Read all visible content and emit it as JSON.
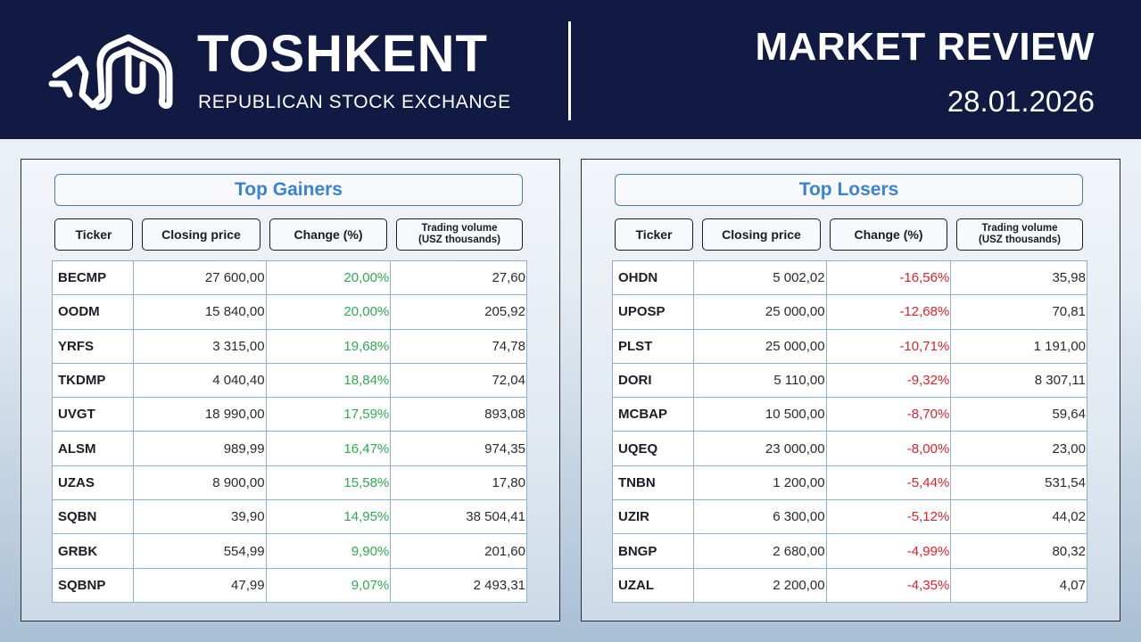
{
  "header": {
    "brand_name": "TOSHKENT",
    "brand_sub": "REPUBLICAN STOCK EXCHANGE",
    "report_title": "MARKET REVIEW",
    "report_date": "28.01.2026",
    "logo_icon": "exchange-logo-icon"
  },
  "colors": {
    "header_bg": "#101a42",
    "title_blue": "#3a83cf",
    "gain_green": "#2eaa4f",
    "loss_red": "#e0222a"
  },
  "columns": {
    "ticker": "Ticker",
    "closing_price": "Closing price",
    "change": "Change (%)",
    "volume_line1": "Trading volume",
    "volume_line2": "(USZ thousands)"
  },
  "gainers": {
    "title": "Top Gainers",
    "rows": [
      {
        "ticker": "BECMP",
        "price": "27 600,00",
        "change": "20,00%",
        "volume": "27,60"
      },
      {
        "ticker": "OODM",
        "price": "15 840,00",
        "change": "20,00%",
        "volume": "205,92"
      },
      {
        "ticker": "YRFS",
        "price": "3 315,00",
        "change": "19,68%",
        "volume": "74,78"
      },
      {
        "ticker": "TKDMP",
        "price": "4 040,40",
        "change": "18,84%",
        "volume": "72,04"
      },
      {
        "ticker": "UVGT",
        "price": "18 990,00",
        "change": "17,59%",
        "volume": "893,08"
      },
      {
        "ticker": "ALSM",
        "price": "989,99",
        "change": "16,47%",
        "volume": "974,35"
      },
      {
        "ticker": "UZAS",
        "price": "8 900,00",
        "change": "15,58%",
        "volume": "17,80"
      },
      {
        "ticker": "SQBN",
        "price": "39,90",
        "change": "14,95%",
        "volume": "38 504,41"
      },
      {
        "ticker": "GRBK",
        "price": "554,99",
        "change": "9,90%",
        "volume": "201,60"
      },
      {
        "ticker": "SQBNP",
        "price": "47,99",
        "change": "9,07%",
        "volume": "2 493,31"
      }
    ]
  },
  "losers": {
    "title": "Top Losers",
    "rows": [
      {
        "ticker": "OHDN",
        "price": "5 002,02",
        "change": "-16,56%",
        "volume": "35,98"
      },
      {
        "ticker": "UPOSP",
        "price": "25 000,00",
        "change": "-12,68%",
        "volume": "70,81"
      },
      {
        "ticker": "PLST",
        "price": "25 000,00",
        "change": "-10,71%",
        "volume": "1 191,00"
      },
      {
        "ticker": "DORI",
        "price": "5 110,00",
        "change": "-9,32%",
        "volume": "8 307,11"
      },
      {
        "ticker": "MCBAP",
        "price": "10 500,00",
        "change": "-8,70%",
        "volume": "59,64"
      },
      {
        "ticker": "UQEQ",
        "price": "23 000,00",
        "change": "-8,00%",
        "volume": "23,00"
      },
      {
        "ticker": "TNBN",
        "price": "1 200,00",
        "change": "-5,44%",
        "volume": "531,54"
      },
      {
        "ticker": "UZIR",
        "price": "6 300,00",
        "change": "-5,12%",
        "volume": "44,02"
      },
      {
        "ticker": "BNGP",
        "price": "2 680,00",
        "change": "-4,99%",
        "volume": "80,32"
      },
      {
        "ticker": "UZAL",
        "price": "2 200,00",
        "change": "-4,35%",
        "volume": "4,07"
      }
    ]
  }
}
